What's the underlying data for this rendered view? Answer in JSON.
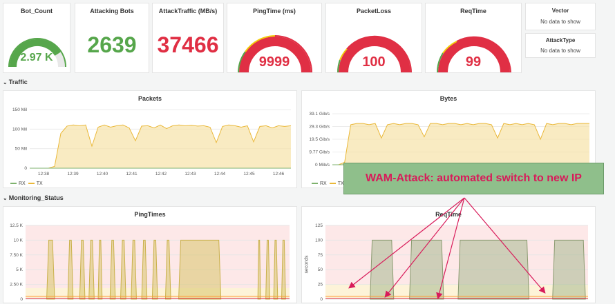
{
  "stats": {
    "bot_count": {
      "title": "Bot_Count",
      "value": "2.97 K",
      "fraction": 0.82
    },
    "attacking_bots": {
      "title": "Attacking Bots",
      "value": "2639"
    },
    "attack_traffic": {
      "title": "AttackTraffic (MB/s)",
      "value": "37466"
    },
    "ping_time": {
      "title": "PingTime (ms)",
      "value": "9999"
    },
    "packet_loss": {
      "title": "PacketLoss",
      "value": "100"
    },
    "req_time": {
      "title": "ReqTime",
      "value": "99"
    }
  },
  "vector": {
    "title": "Vector",
    "message": "No data to show"
  },
  "attack_type": {
    "title": "AttackType",
    "message": "No data to show"
  },
  "rows": {
    "traffic": "Traffic",
    "monitoring": "Monitoring_Status"
  },
  "colors": {
    "green": "#56a64b",
    "red": "#e02f44",
    "yellow": "#f2cc0c",
    "orange": "#ff9830",
    "tx": "#eab839",
    "rx": "#7eb26d"
  },
  "legend": {
    "rx": "RX",
    "tx": "TX"
  },
  "callout": "WAM-Attack: automated switch to new IP",
  "chart_data": [
    {
      "type": "area",
      "title": "Packets",
      "yticks": [
        "150 Mil",
        "100 Mil",
        "50 Mil",
        "0"
      ],
      "ylim": [
        0,
        160000000
      ],
      "xticks": [
        "12:38",
        "12:39",
        "12:40",
        "12:41",
        "12:42",
        "12:43",
        "12:44",
        "12:45",
        "12:46"
      ],
      "series": [
        {
          "name": "TX",
          "values": [
            0,
            0,
            0,
            0,
            5,
            95,
            115,
            118,
            116,
            118,
            60,
            112,
            118,
            112,
            116,
            118,
            110,
            75,
            115,
            116,
            110,
            118,
            108,
            116,
            118,
            116,
            117,
            115,
            116,
            112,
            70,
            114,
            118,
            116,
            112,
            116,
            72,
            114,
            116,
            110,
            116,
            114,
            116
          ]
        },
        {
          "name": "RX",
          "values": [
            0,
            0,
            0,
            0,
            0,
            0,
            0,
            0,
            0,
            0,
            0,
            0,
            0,
            0,
            0,
            0,
            0,
            0,
            0,
            0,
            0,
            0,
            0,
            0,
            0,
            0,
            0,
            0,
            0,
            0,
            0,
            0,
            0,
            0,
            0,
            0,
            0,
            0,
            0,
            0,
            0,
            0,
            0
          ]
        }
      ]
    },
    {
      "type": "area",
      "title": "Bytes",
      "yticks": [
        "39.1 Gib/s",
        "29.3 Gib/s",
        "19.5 Gib/s",
        "9.77 Gib/s",
        "0 Mib/s"
      ],
      "ylim": [
        0,
        42
      ],
      "series": [
        {
          "name": "TX",
          "values": [
            0,
            0,
            2,
            33,
            34,
            34,
            33,
            34,
            22,
            33,
            34,
            33,
            34,
            34,
            33,
            23,
            34,
            34,
            33,
            34,
            34,
            33,
            34,
            33,
            34,
            34,
            33,
            22,
            34,
            33,
            34,
            33,
            34,
            33,
            21,
            34,
            33,
            34,
            34,
            33,
            34,
            34,
            34
          ]
        },
        {
          "name": "RX",
          "values": [
            0,
            0,
            0,
            0,
            0,
            0,
            0,
            0,
            0,
            0,
            0,
            0,
            0,
            0,
            0,
            0,
            0,
            0,
            0,
            0,
            0,
            0,
            0,
            0,
            0,
            0,
            0,
            0,
            0,
            0,
            0,
            0,
            0,
            0,
            0,
            0,
            0,
            0,
            0,
            0,
            0,
            0,
            0
          ]
        }
      ]
    },
    {
      "type": "area",
      "title": "PingTimes",
      "yticks": [
        "12.5 K",
        "10 K",
        "7.50 K",
        "5 K",
        "2.50 K",
        "0"
      ],
      "ylim": [
        0,
        12500
      ],
      "pulses": [
        [
          0.08,
          0.11
        ],
        [
          0.16,
          0.18
        ],
        [
          0.205,
          0.225
        ],
        [
          0.24,
          0.26
        ],
        [
          0.275,
          0.29
        ],
        [
          0.32,
          0.34
        ],
        [
          0.36,
          0.38
        ],
        [
          0.4,
          0.42
        ],
        [
          0.44,
          0.46
        ],
        [
          0.48,
          0.5
        ],
        [
          0.53,
          0.55
        ],
        [
          0.58,
          0.74
        ],
        [
          0.88,
          0.89
        ],
        [
          0.91,
          0.925
        ],
        [
          0.94,
          0.955
        ],
        [
          0.97,
          0.985
        ]
      ]
    },
    {
      "type": "area",
      "title": "ReqTime",
      "ylabel": "seconds",
      "yticks": [
        "125",
        "100",
        "75",
        "50",
        "25",
        "0"
      ],
      "ylim": [
        0,
        125
      ],
      "pulses": [
        [
          0.17,
          0.26
        ],
        [
          0.32,
          0.45
        ],
        [
          0.505,
          0.775
        ],
        [
          0.865,
          0.99
        ]
      ]
    }
  ]
}
